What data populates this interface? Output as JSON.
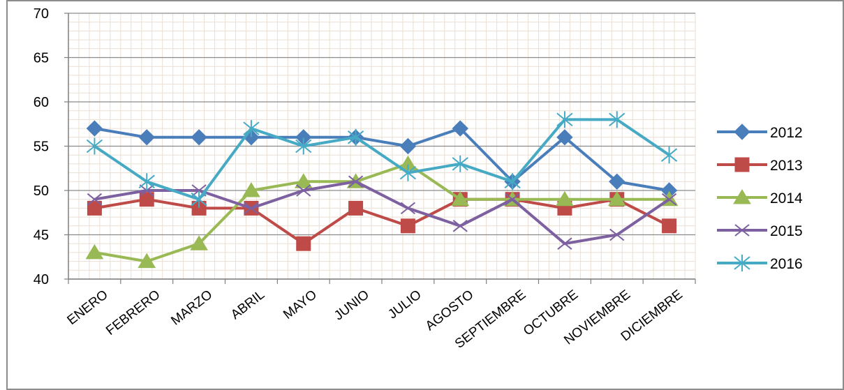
{
  "chart_data": {
    "type": "line",
    "title": "",
    "xlabel": "",
    "ylabel": "",
    "categories": [
      "ENERO",
      "FEBRERO",
      "MARZO",
      "ABRIL",
      "MAYO",
      "JUNIO",
      "JULIO",
      "AGOSTO",
      "SEPTIEMBRE",
      "OCTUBRE",
      "NOVIEMBRE",
      "DICIEMBRE"
    ],
    "ylim": [
      40,
      70
    ],
    "yticks": [
      "40",
      "45",
      "50",
      "55",
      "60",
      "65",
      "70"
    ],
    "grid": true,
    "legend_position": "right",
    "series": [
      {
        "name": "2012",
        "color": "#4a7ebb",
        "marker": "diamond",
        "values": [
          57,
          56,
          56,
          56,
          56,
          56,
          55,
          57,
          51,
          56,
          51,
          50
        ]
      },
      {
        "name": "2013",
        "color": "#be4b48",
        "marker": "square",
        "values": [
          48,
          49,
          48,
          48,
          44,
          48,
          46,
          49,
          49,
          48,
          49,
          46
        ]
      },
      {
        "name": "2014",
        "color": "#98b954",
        "marker": "triangle",
        "values": [
          43,
          42,
          44,
          50,
          51,
          51,
          53,
          49,
          49,
          49,
          49,
          49
        ]
      },
      {
        "name": "2015",
        "color": "#7d60a0",
        "marker": "x",
        "values": [
          49,
          50,
          50,
          48,
          50,
          51,
          48,
          46,
          49,
          44,
          45,
          49
        ]
      },
      {
        "name": "2016",
        "color": "#46aac5",
        "marker": "star",
        "values": [
          55,
          51,
          49,
          57,
          55,
          56,
          52,
          53,
          51,
          58,
          58,
          54
        ]
      }
    ]
  }
}
